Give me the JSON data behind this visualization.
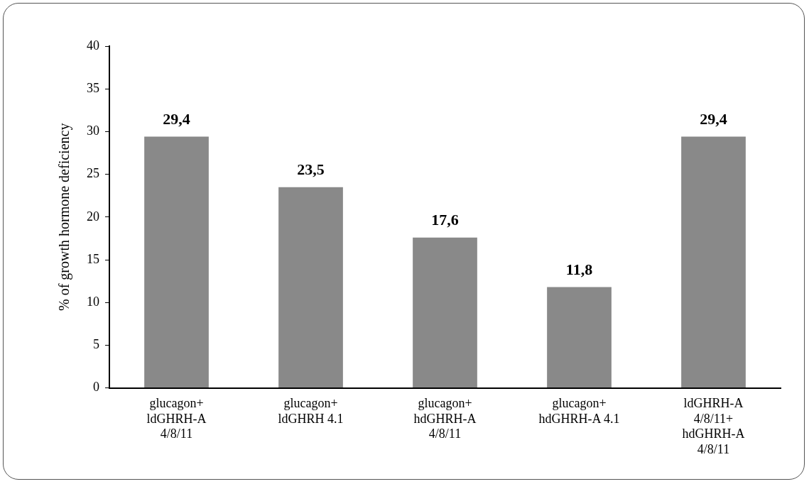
{
  "chart_data": {
    "type": "bar",
    "ylabel": "% of growth hormone deficiency",
    "categories": [
      "glucagon+ ldGHRH-A 4/8/11",
      "glucagon+ ldGHRH 4.1",
      "glucagon+ hdGHRH-A 4/8/11",
      "glucagon+ hdGHRH-A 4.1",
      "ldGHRH-A 4/8/11+ hdGHRH-A 4/8/11"
    ],
    "values": [
      29.4,
      23.5,
      17.6,
      11.8,
      29.4
    ],
    "value_labels": [
      "29,4",
      "23,5",
      "17,6",
      "11,8",
      "29,4"
    ],
    "color": "#898989",
    "ylim": [
      0,
      40
    ],
    "yticks": [
      0,
      5,
      10,
      15,
      20,
      25,
      30,
      35,
      40
    ],
    "grid": false,
    "legend": false
  }
}
